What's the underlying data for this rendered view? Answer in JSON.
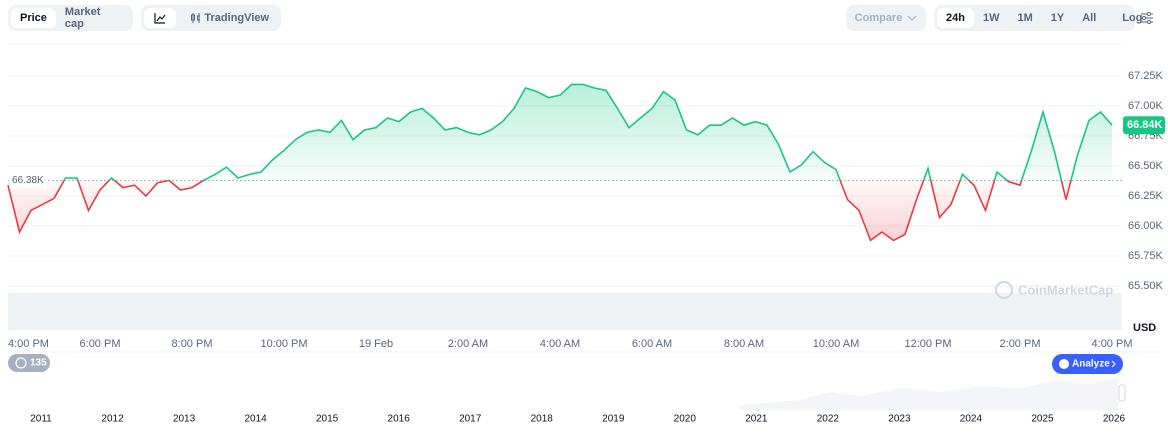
{
  "toolbar": {
    "price_tab": "Price",
    "market_cap_tab": "Market cap",
    "trading_view": "TradingView",
    "compare": "Compare",
    "ranges": [
      "24h",
      "1W",
      "1M",
      "1Y",
      "All"
    ],
    "log": "Log"
  },
  "chart_data": {
    "type": "line",
    "categories": [
      "4:00 PM",
      null,
      null,
      null,
      null,
      null,
      null,
      null,
      "6:00 PM",
      null,
      null,
      null,
      null,
      null,
      null,
      null,
      "8:00 PM",
      null,
      null,
      null,
      null,
      null,
      null,
      null,
      "10:00 PM",
      null,
      null,
      null,
      null,
      null,
      null,
      null,
      "19 Feb",
      null,
      null,
      null,
      null,
      null,
      null,
      null,
      "2:00 AM",
      null,
      null,
      null,
      null,
      null,
      null,
      null,
      "4:00 AM",
      null,
      null,
      null,
      null,
      null,
      null,
      null,
      "6:00 AM",
      null,
      null,
      null,
      null,
      null,
      null,
      null,
      "8:00 AM",
      null,
      null,
      null,
      null,
      null,
      null,
      null,
      "10:00 AM",
      null,
      null,
      null,
      null,
      null,
      null,
      null,
      "12:00 PM",
      null,
      null,
      null,
      null,
      null,
      null,
      null,
      "2:00 PM",
      null,
      null,
      null,
      null,
      null,
      null,
      null,
      "4:00 PM"
    ],
    "values": [
      66340,
      65950,
      66130,
      66180,
      66230,
      66400,
      66400,
      66130,
      66300,
      66400,
      66320,
      66340,
      66250,
      66360,
      66380,
      66300,
      66320,
      66380,
      66430,
      66490,
      66400,
      66430,
      66450,
      66550,
      66630,
      66720,
      66780,
      66800,
      66780,
      66880,
      66720,
      66800,
      66820,
      66900,
      66870,
      66950,
      66980,
      66900,
      66800,
      66820,
      66780,
      66760,
      66800,
      66870,
      66980,
      67150,
      67120,
      67070,
      67090,
      67180,
      67180,
      67150,
      67130,
      66980,
      66820,
      66900,
      66980,
      67120,
      67050,
      66800,
      66760,
      66840,
      66840,
      66900,
      66840,
      66870,
      66840,
      66680,
      66450,
      66510,
      66620,
      66530,
      66470,
      66220,
      66130,
      65880,
      65950,
      65880,
      65930,
      66220,
      66480,
      66070,
      66180,
      66430,
      66340,
      66130,
      66450,
      66370,
      66340,
      66630,
      66950,
      66620,
      66220,
      66590,
      66880,
      66950,
      66840
    ],
    "up_color": "#16c784",
    "down_color": "#ea3943",
    "ylim": [
      65450,
      67500
    ],
    "yticks": [
      {
        "value": 65500,
        "label": "65.50K"
      },
      {
        "value": 65750,
        "label": "65.75K"
      },
      {
        "value": 66000,
        "label": "66.00K"
      },
      {
        "value": 66250,
        "label": "66.25K"
      },
      {
        "value": 66500,
        "label": "66.50K"
      },
      {
        "value": 66750,
        "label": "66.75K"
      },
      {
        "value": 67000,
        "label": "67.00K"
      },
      {
        "value": 67250,
        "label": "67.25K"
      }
    ],
    "grid": true,
    "reference": {
      "value": 66380,
      "label": "66.38K"
    },
    "current": {
      "value": 66840,
      "label": "66.84K"
    },
    "unit": "USD",
    "watermark": "CoinMarketCap"
  },
  "navigator": {
    "years": [
      "2011",
      "2012",
      "2013",
      "2014",
      "2015",
      "2016",
      "2017",
      "2018",
      "2019",
      "2020",
      "2021",
      "2022",
      "2023",
      "2024",
      "2025",
      "2026"
    ],
    "badge": "135",
    "analyze": "Analyze"
  }
}
